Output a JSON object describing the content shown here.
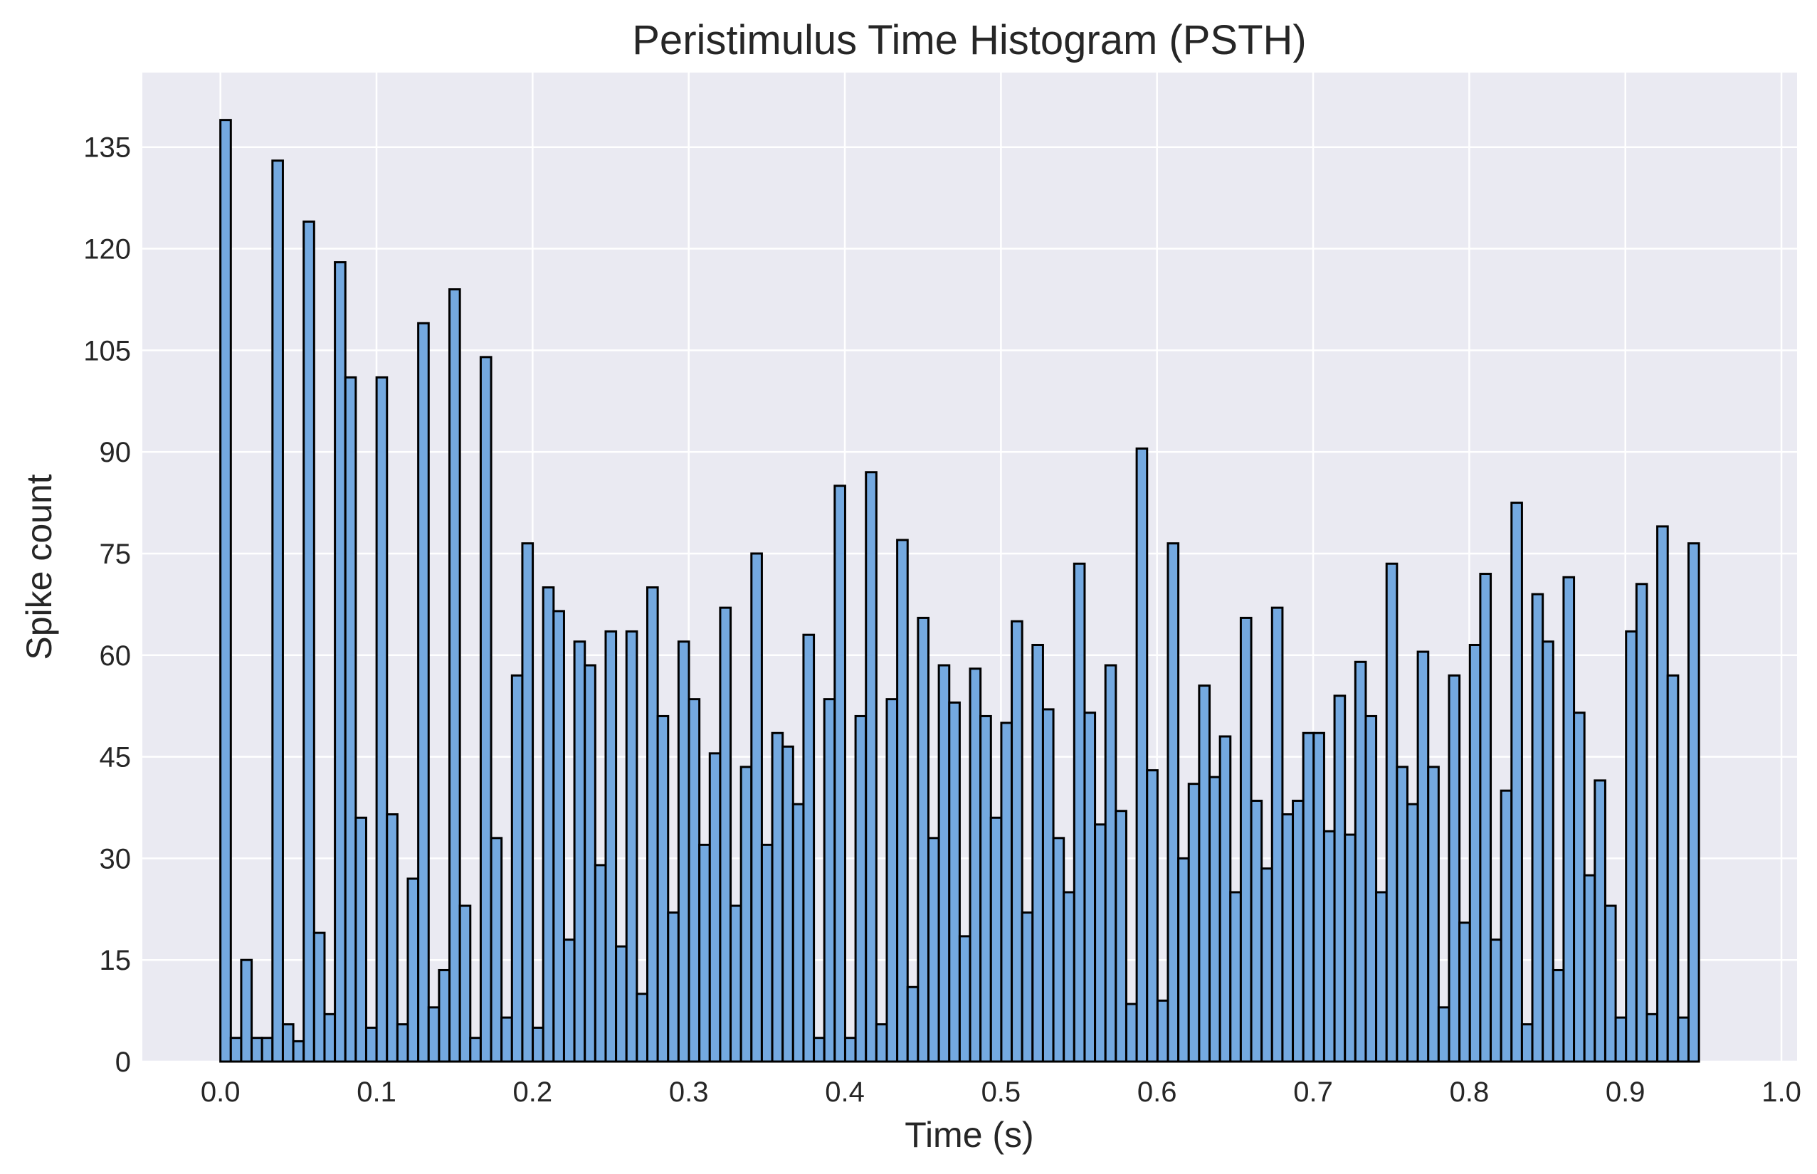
{
  "chart_data": {
    "type": "bar",
    "title": "Peristimulus Time Histogram (PSTH)",
    "xlabel": "Time (s)",
    "ylabel": "Spike count",
    "xlim": [
      -0.05,
      1.01
    ],
    "ylim": [
      0,
      146
    ],
    "bin_width": 0.00667,
    "x_ticks": [
      0.0,
      0.1,
      0.2,
      0.3,
      0.4,
      0.5,
      0.6,
      0.7,
      0.8,
      0.9,
      1.0
    ],
    "x_tick_labels": [
      "0.0",
      "0.1",
      "0.2",
      "0.3",
      "0.4",
      "0.5",
      "0.6",
      "0.7",
      "0.8",
      "0.9",
      "1.0"
    ],
    "y_ticks": [
      0,
      15,
      30,
      45,
      60,
      75,
      90,
      105,
      120,
      135
    ],
    "y_tick_labels": [
      "0",
      "15",
      "30",
      "45",
      "60",
      "75",
      "90",
      "105",
      "120",
      "135"
    ],
    "grid": true,
    "colors": {
      "bar_fill": "#74a9e0",
      "bar_edge": "#000000",
      "plot_bg": "#eaeaf2",
      "grid": "#ffffff"
    },
    "values": [
      139,
      3.5,
      15,
      3.5,
      3.5,
      133,
      5.5,
      3,
      124,
      19,
      7,
      118,
      101,
      36,
      5,
      101,
      36.5,
      5.5,
      27,
      109,
      8,
      13.5,
      114,
      23,
      3.5,
      104,
      33,
      6.5,
      57,
      76.5,
      5,
      70,
      66.5,
      18,
      62,
      58.5,
      29,
      63.5,
      17,
      63.5,
      10,
      70,
      51,
      22,
      62,
      53.5,
      32,
      45.5,
      67,
      23,
      43.5,
      75,
      32,
      48.5,
      46.5,
      38,
      63,
      3.5,
      53.5,
      85,
      3.5,
      51,
      87,
      5.5,
      53.5,
      77,
      11,
      65.5,
      33,
      58.5,
      53,
      18.5,
      58,
      51,
      36,
      50,
      65,
      22,
      61.5,
      52,
      33,
      25,
      73.5,
      51.5,
      35,
      58.5,
      37,
      8.5,
      90.5,
      43,
      9,
      76.5,
      30,
      41,
      55.5,
      42,
      48,
      25,
      65.5,
      38.5,
      28.5,
      67,
      36.5,
      38.5,
      48.5,
      48.5,
      34,
      54,
      33.5,
      59,
      51,
      25,
      73.5,
      43.5,
      38,
      60.5,
      43.5,
      8,
      57,
      20.5,
      61.5,
      72,
      18,
      40,
      82.5,
      5.5,
      69,
      62,
      13.5,
      71.5,
      51.5,
      27.5,
      41.5,
      23,
      6.5,
      63.5,
      70.5,
      7,
      79,
      57,
      6.5,
      76.5
    ]
  }
}
